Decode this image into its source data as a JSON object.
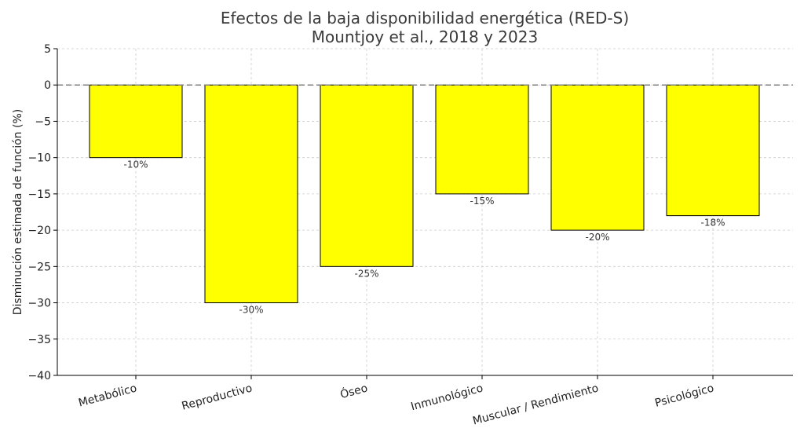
{
  "chart_data": {
    "type": "bar",
    "title": [
      "Efectos de la baja disponibilidad energética (RED-S)",
      "Mountjoy et al., 2018 y 2023"
    ],
    "xlabel": "",
    "ylabel": "Disminución estimada de función (%)",
    "categories": [
      "Metabólico",
      "Reproductivo",
      "Óseo",
      "Inmunológico",
      "Muscular / Rendimiento",
      "Psicológico"
    ],
    "values": [
      -10,
      -30,
      -25,
      -15,
      -20,
      -18
    ],
    "data_labels": [
      "-10%",
      "-30%",
      "-25%",
      "-15%",
      "-20%",
      "-18%"
    ],
    "ylim": [
      -40,
      5
    ],
    "yticks": [
      5,
      0,
      -5,
      -10,
      -15,
      -20,
      -25,
      -30,
      -35,
      -40
    ],
    "ytick_labels": [
      "5",
      "0",
      "−5",
      "−10",
      "−15",
      "−20",
      "−25",
      "−30",
      "−35",
      "−40"
    ],
    "reference_line": 0,
    "grid": true,
    "bar_color": "#ffff00",
    "bar_edge_color": "#000000",
    "reference_line_color": "#808080",
    "grid_color": "#cccccc"
  }
}
